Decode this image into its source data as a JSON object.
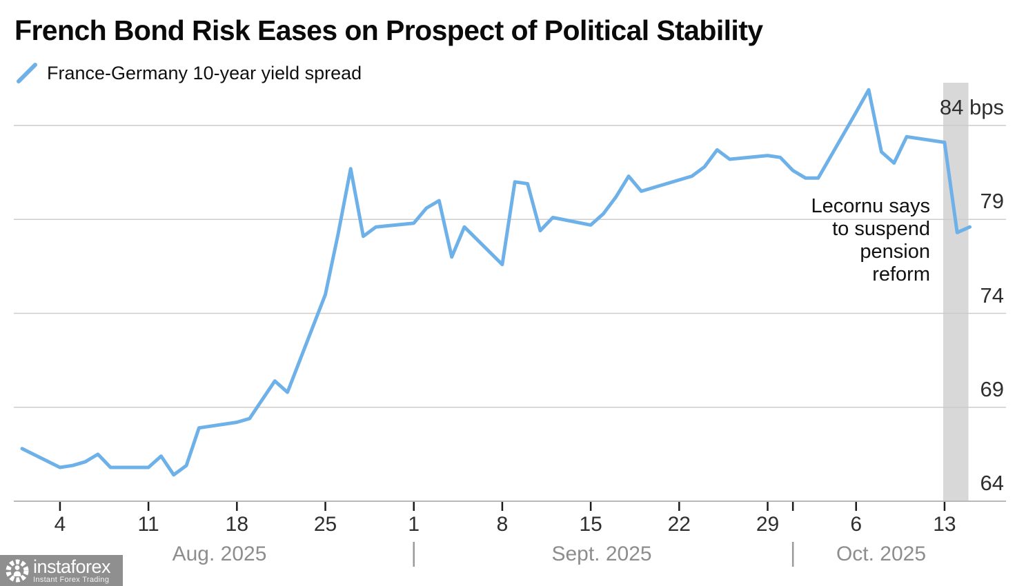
{
  "title": "French Bond Risk Eases on Prospect of Political Stability",
  "legend": {
    "label": "France-Germany 10-year yield spread",
    "color": "#6EB1E8"
  },
  "annotation": {
    "text": "Lecornu says\nto suspend\npension\nreform"
  },
  "watermark": {
    "name": "instaforex",
    "tagline": "Instant Forex Trading"
  },
  "colors": {
    "line": "#6EB1E8",
    "gridline": "#cccccc",
    "axis_line": "#b8b8b8",
    "tick": "#1a1a1a",
    "month_separator": "#999999",
    "highlight_band": "#d8d8d8"
  },
  "chart_data": {
    "type": "line",
    "title": "French Bond Risk Eases on Prospect of Political Stability",
    "unit": "bps",
    "grid": true,
    "legend_position": "top-left",
    "ylim": [
      64,
      86.5
    ],
    "yticks": [
      {
        "value": 84,
        "label": "84 bps"
      },
      {
        "value": 79,
        "label": "79"
      },
      {
        "value": 74,
        "label": "74"
      },
      {
        "value": 69,
        "label": "69"
      },
      {
        "value": 64,
        "label": "64"
      }
    ],
    "xticks": [
      {
        "date": "2025-08-04",
        "label": "4"
      },
      {
        "date": "2025-08-11",
        "label": "11"
      },
      {
        "date": "2025-08-18",
        "label": "18"
      },
      {
        "date": "2025-08-25",
        "label": "25"
      },
      {
        "date": "2025-09-01",
        "label": "1"
      },
      {
        "date": "2025-09-08",
        "label": "8"
      },
      {
        "date": "2025-09-15",
        "label": "15"
      },
      {
        "date": "2025-09-22",
        "label": "22"
      },
      {
        "date": "2025-09-29",
        "label": "29"
      },
      {
        "date": "2025-10-01",
        "label": ""
      },
      {
        "date": "2025-10-06",
        "label": "6"
      },
      {
        "date": "2025-10-13",
        "label": "13"
      }
    ],
    "month_labels": [
      "Aug. 2025",
      "Sept. 2025",
      "Oct. 2025"
    ],
    "month_separators": [
      "2025-09-01",
      "2025-10-01"
    ],
    "highlight_band": {
      "from": "2025-10-13",
      "to": "2025-10-15"
    },
    "series": [
      {
        "name": "France-Germany 10-year yield spread",
        "color": "#6EB1E8",
        "points": [
          {
            "date": "2025-08-01",
            "value": 66.8
          },
          {
            "date": "2025-08-04",
            "value": 65.8
          },
          {
            "date": "2025-08-05",
            "value": 65.9
          },
          {
            "date": "2025-08-06",
            "value": 66.1
          },
          {
            "date": "2025-08-07",
            "value": 66.5
          },
          {
            "date": "2025-08-08",
            "value": 65.8
          },
          {
            "date": "2025-08-11",
            "value": 65.8
          },
          {
            "date": "2025-08-12",
            "value": 66.4
          },
          {
            "date": "2025-08-13",
            "value": 65.4
          },
          {
            "date": "2025-08-14",
            "value": 65.9
          },
          {
            "date": "2025-08-15",
            "value": 67.9
          },
          {
            "date": "2025-08-18",
            "value": 68.2
          },
          {
            "date": "2025-08-19",
            "value": 68.4
          },
          {
            "date": "2025-08-20",
            "value": 69.4
          },
          {
            "date": "2025-08-21",
            "value": 70.4
          },
          {
            "date": "2025-08-22",
            "value": 69.8
          },
          {
            "date": "2025-08-25",
            "value": 75.0
          },
          {
            "date": "2025-08-26",
            "value": 78.2
          },
          {
            "date": "2025-08-27",
            "value": 81.7
          },
          {
            "date": "2025-08-28",
            "value": 78.1
          },
          {
            "date": "2025-08-29",
            "value": 78.6
          },
          {
            "date": "2025-09-01",
            "value": 78.8
          },
          {
            "date": "2025-09-02",
            "value": 79.6
          },
          {
            "date": "2025-09-03",
            "value": 80.0
          },
          {
            "date": "2025-09-04",
            "value": 77.0
          },
          {
            "date": "2025-09-05",
            "value": 78.6
          },
          {
            "date": "2025-09-08",
            "value": 76.6
          },
          {
            "date": "2025-09-09",
            "value": 81.0
          },
          {
            "date": "2025-09-10",
            "value": 80.9
          },
          {
            "date": "2025-09-11",
            "value": 78.4
          },
          {
            "date": "2025-09-12",
            "value": 79.1
          },
          {
            "date": "2025-09-15",
            "value": 78.7
          },
          {
            "date": "2025-09-16",
            "value": 79.3
          },
          {
            "date": "2025-09-17",
            "value": 80.2
          },
          {
            "date": "2025-09-18",
            "value": 81.3
          },
          {
            "date": "2025-09-19",
            "value": 80.5
          },
          {
            "date": "2025-09-22",
            "value": 81.1
          },
          {
            "date": "2025-09-23",
            "value": 81.3
          },
          {
            "date": "2025-09-24",
            "value": 81.8
          },
          {
            "date": "2025-09-25",
            "value": 82.7
          },
          {
            "date": "2025-09-26",
            "value": 82.2
          },
          {
            "date": "2025-09-29",
            "value": 82.4
          },
          {
            "date": "2025-09-30",
            "value": 82.3
          },
          {
            "date": "2025-10-01",
            "value": 81.6
          },
          {
            "date": "2025-10-02",
            "value": 81.2
          },
          {
            "date": "2025-10-03",
            "value": 81.2
          },
          {
            "date": "2025-10-06",
            "value": 84.7
          },
          {
            "date": "2025-10-07",
            "value": 85.9
          },
          {
            "date": "2025-10-08",
            "value": 82.6
          },
          {
            "date": "2025-10-09",
            "value": 82.0
          },
          {
            "date": "2025-10-10",
            "value": 83.4
          },
          {
            "date": "2025-10-13",
            "value": 83.1
          },
          {
            "date": "2025-10-14",
            "value": 78.3
          },
          {
            "date": "2025-10-15",
            "value": 78.6
          }
        ]
      }
    ]
  }
}
